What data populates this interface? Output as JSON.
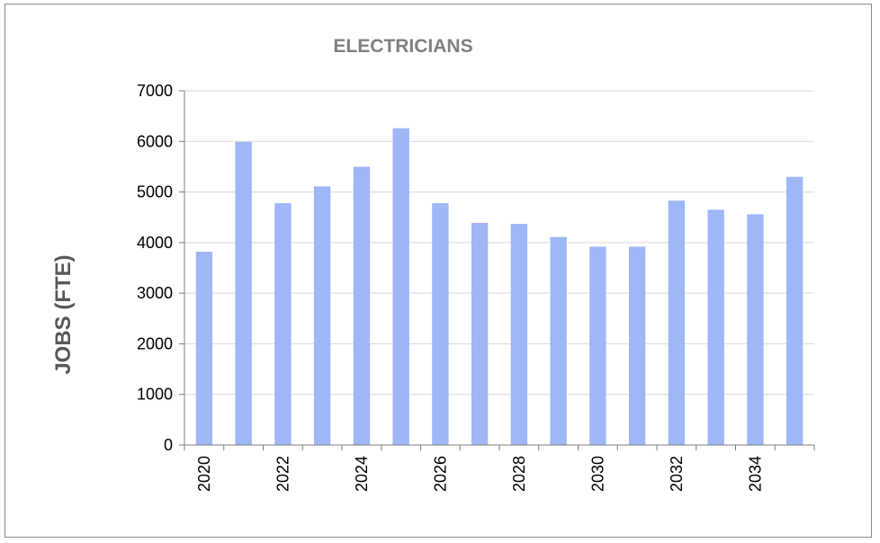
{
  "chart_data": {
    "type": "bar",
    "title": "ELECTRICIANS",
    "xlabel": "",
    "ylabel": "JOBS (FTE)",
    "categories": [
      "2020",
      "2021",
      "2022",
      "2023",
      "2024",
      "2025",
      "2026",
      "2027",
      "2028",
      "2029",
      "2030",
      "2031",
      "2032",
      "2033",
      "2034",
      "2035"
    ],
    "x_tick_labels": [
      "2020",
      "",
      "2022",
      "",
      "2024",
      "",
      "2026",
      "",
      "2028",
      "",
      "2030",
      "",
      "2032",
      "",
      "2034",
      ""
    ],
    "values": [
      3820,
      5990,
      4780,
      5110,
      5500,
      6260,
      4780,
      4390,
      4370,
      4110,
      3920,
      3920,
      4830,
      4650,
      4560,
      5300
    ],
    "ylim": [
      0,
      7000
    ],
    "y_ticks": [
      0,
      1000,
      2000,
      3000,
      4000,
      5000,
      6000,
      7000
    ],
    "grid": true,
    "legend": "none",
    "colors": {
      "bar": "#9fb7f7",
      "grid": "#d9d9d9",
      "axis": "#7f7f7f"
    }
  }
}
